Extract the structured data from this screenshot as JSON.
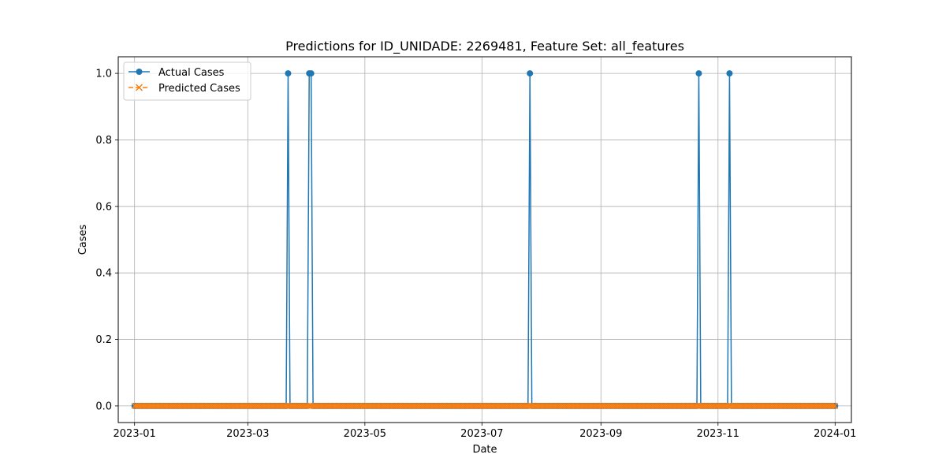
{
  "chart_data": {
    "type": "line",
    "title": "Predictions for ID_UNIDADE: 2269481, Feature Set: all_features",
    "xlabel": "Date",
    "ylabel": "Cases",
    "x_start": "2023-01-01",
    "x_end": "2024-01-01",
    "ylim": [
      -0.05,
      1.05
    ],
    "grid": true,
    "legend_position": "top-left",
    "x_ticks": [
      "2023-01",
      "2023-03",
      "2023-05",
      "2023-07",
      "2023-09",
      "2023-11",
      "2024-01"
    ],
    "y_ticks": [
      "0.0",
      "0.2",
      "0.4",
      "0.6",
      "0.8",
      "1.0"
    ],
    "series": [
      {
        "name": "Actual Cases",
        "color": "#1f77b4",
        "marker": "circle",
        "default_value": 0,
        "nonzero_points": [
          {
            "date": "2023-03-22",
            "value": 1
          },
          {
            "date": "2023-04-02",
            "value": 1
          },
          {
            "date": "2023-04-03",
            "value": 1
          },
          {
            "date": "2023-07-26",
            "value": 1
          },
          {
            "date": "2023-10-22",
            "value": 1
          },
          {
            "date": "2023-11-07",
            "value": 1
          }
        ]
      },
      {
        "name": "Predicted Cases",
        "color": "#ff7f0e",
        "marker": "x",
        "default_value": 0,
        "nonzero_points": []
      }
    ]
  }
}
